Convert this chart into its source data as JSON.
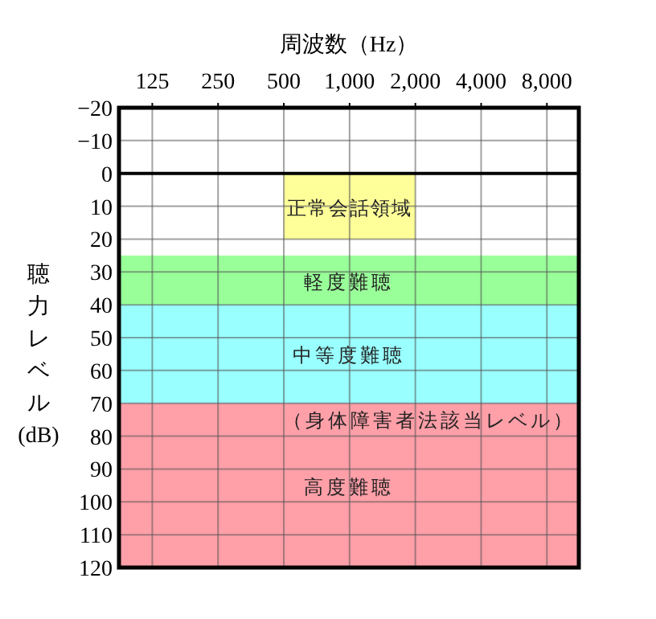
{
  "chart_data": {
    "type": "area",
    "xlabel": "周波数（Hz）",
    "ylabel": "聴力レベル(dB)",
    "log": "x",
    "xlim": [
      88,
      11200
    ],
    "xticks": [
      125,
      250,
      500,
      {
        "value": 1000,
        "label": "1,000"
      },
      {
        "value": 2000,
        "label": "2,000"
      },
      {
        "value": 4000,
        "label": "4,000"
      },
      {
        "value": 8000,
        "label": "8,000"
      }
    ],
    "ylim": [
      120,
      -20
    ],
    "yticks": [
      {
        "value": -20,
        "label": "−20"
      },
      {
        "value": -10,
        "label": "−10"
      },
      0,
      10,
      20,
      30,
      40,
      50,
      60,
      70,
      80,
      90,
      100,
      110,
      120
    ],
    "grid": true,
    "series": [
      {
        "name": "正常会話領域",
        "color": "#ffff99",
        "x": [
          500,
          2000
        ],
        "values": [
          20,
          20
        ]
      }
    ],
    "bands": [
      {
        "axis": "y",
        "from": 25,
        "to": 40,
        "label": "軽度難聴",
        "color": "#99ff99"
      },
      {
        "axis": "y",
        "from": 40,
        "to": 70,
        "label": "中等度難聴",
        "color": "#99ffff"
      },
      {
        "axis": "y",
        "from": 70,
        "to": 120,
        "label": "高度難聴",
        "color": "#ff9fa8"
      }
    ],
    "ref_lines": [
      {
        "axis": "y",
        "value": 0,
        "label": null,
        "color": "#000000"
      }
    ],
    "annotations": [
      "（身体障害者法該当レベル）"
    ]
  }
}
